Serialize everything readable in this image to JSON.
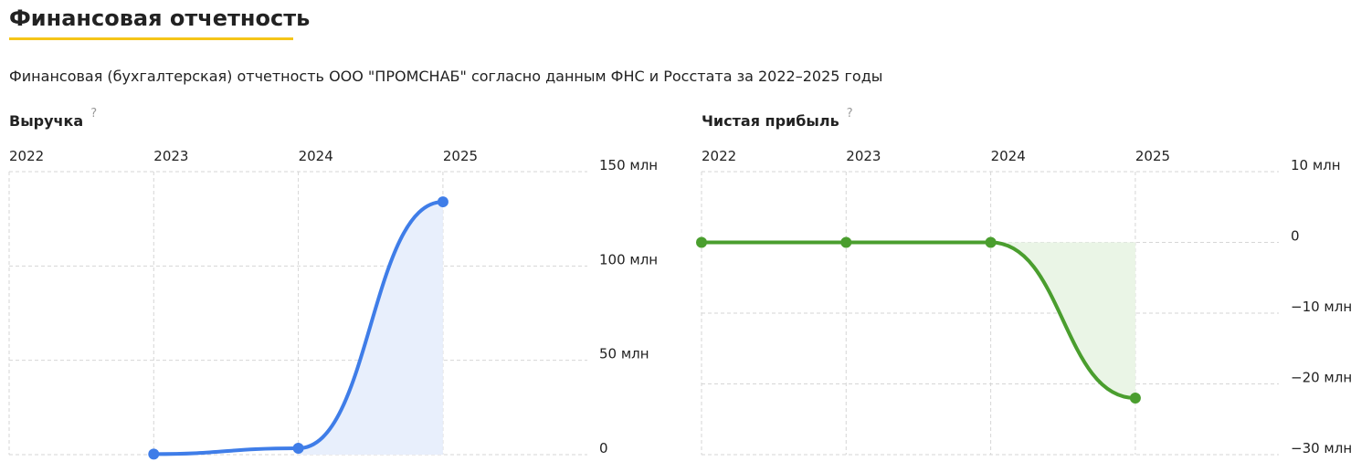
{
  "header": {
    "title": "Финансовая отчетность",
    "subtitle": "Финансовая (бухгалтерская) отчетность ООО \"ПРОМСНАБ\" согласно данным ФНС и Росстата за 2022–2025 годы"
  },
  "chart_data": [
    {
      "type": "line",
      "title": "Выручка",
      "hint": "?",
      "categories": [
        "2022",
        "2023",
        "2024",
        "2025"
      ],
      "values": [
        null,
        0.3,
        3.4,
        134
      ],
      "color": "#3f7de8",
      "area_color": "#e8effc",
      "ylim": [
        0,
        150
      ],
      "yticks": [
        0,
        {
          "value": 50,
          "label": "50 млн"
        },
        {
          "value": 100,
          "label": "100 млн"
        },
        {
          "value": 150,
          "label": "150 млн"
        }
      ],
      "grid": true
    },
    {
      "type": "line",
      "title": "Чистая прибыль",
      "hint": "?",
      "categories": [
        "2022",
        "2023",
        "2024",
        "2025"
      ],
      "values": [
        0,
        0,
        0,
        -22
      ],
      "color": "#4a9e2e",
      "area_color": "#eaf5e6",
      "ylim": [
        -30,
        10
      ],
      "yticks": [
        {
          "value": -30,
          "label": "−30 млн"
        },
        {
          "value": -20,
          "label": "−20 млн"
        },
        {
          "value": -10,
          "label": "−10 млн"
        },
        0,
        {
          "value": 10,
          "label": "10 млн"
        }
      ],
      "grid": true
    }
  ]
}
